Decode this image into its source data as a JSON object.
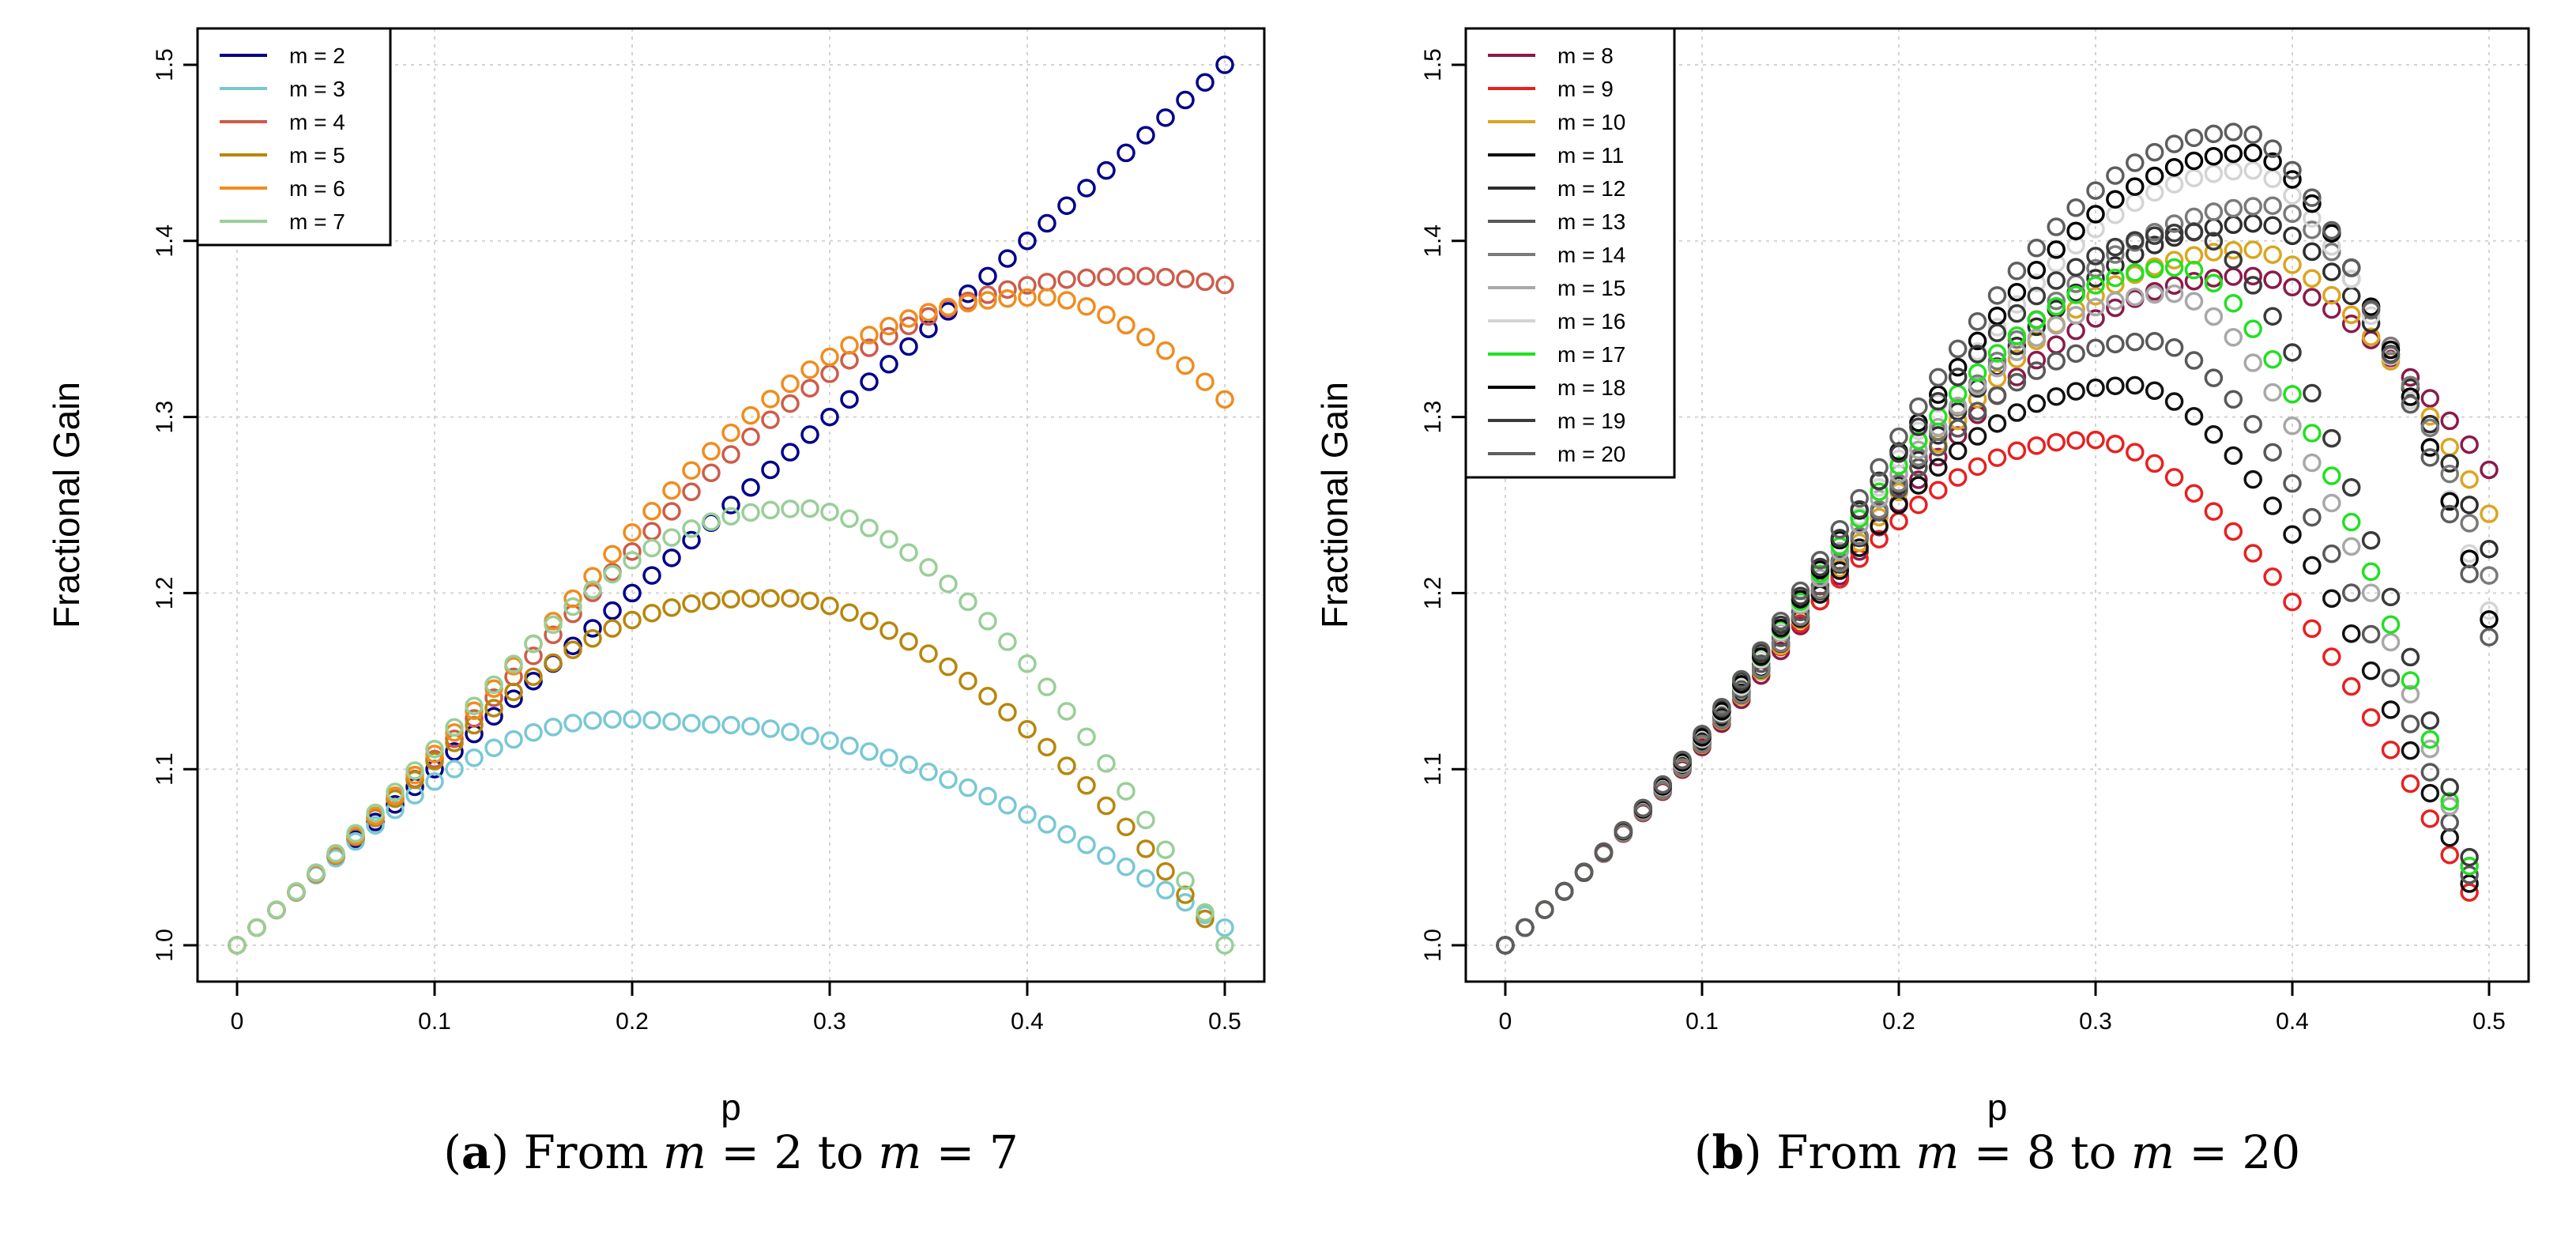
{
  "chart_data": [
    {
      "type": "scatter",
      "panel_label": "(a)",
      "caption": {
        "open": "(",
        "letter": "a",
        "close": ")",
        "text1": " From ",
        "var1": "m",
        "text2": " = 2 to ",
        "var2": "m",
        "text3": " = 7"
      },
      "xlabel": "p",
      "ylabel": "Fractional Gain",
      "xlim": [
        0,
        0.5
      ],
      "ylim": [
        1.0,
        1.5
      ],
      "xticks": [
        "0",
        "0.1",
        "0.2",
        "0.3",
        "0.4",
        "0.5"
      ],
      "yticks": [
        "1.0",
        "1.1",
        "1.2",
        "1.3",
        "1.4",
        "1.5"
      ],
      "grid": true,
      "legend_position": "top-left",
      "series": [
        {
          "name": "m =  2",
          "m": 2,
          "color": "#00008b"
        },
        {
          "name": "m =  3",
          "m": 3,
          "color": "#78c8d4"
        },
        {
          "name": "m =  4",
          "m": 4,
          "color": "#cd5c4a"
        },
        {
          "name": "m =  5",
          "m": 5,
          "color": "#b8860b"
        },
        {
          "name": "m =  6",
          "m": 6,
          "color": "#f08c1e"
        },
        {
          "name": "m =  7",
          "m": 7,
          "color": "#98cf98"
        }
      ]
    },
    {
      "type": "scatter",
      "panel_label": "(b)",
      "caption": {
        "open": "(",
        "letter": "b",
        "close": ")",
        "text1": " From ",
        "var1": "m",
        "text2": " = 8 to ",
        "var2": "m",
        "text3": " = 20"
      },
      "xlabel": "p",
      "ylabel": "Fractional Gain",
      "xlim": [
        0,
        0.5
      ],
      "ylim": [
        1.0,
        1.5
      ],
      "xticks": [
        "0",
        "0.1",
        "0.2",
        "0.3",
        "0.4",
        "0.5"
      ],
      "yticks": [
        "1.0",
        "1.1",
        "1.2",
        "1.3",
        "1.4",
        "1.5"
      ],
      "grid": true,
      "legend_position": "top-left",
      "series": [
        {
          "name": "m =  8",
          "m": 8,
          "color": "#8b1a4a"
        },
        {
          "name": "m =  9",
          "m": 9,
          "color": "#e82020"
        },
        {
          "name": "m =  10",
          "m": 10,
          "color": "#daa520"
        },
        {
          "name": "m =  11",
          "m": 11,
          "color": "#111111"
        },
        {
          "name": "m =  12",
          "m": 12,
          "color": "#2e2e2e"
        },
        {
          "name": "m =  13",
          "m": 13,
          "color": "#585858"
        },
        {
          "name": "m =  14",
          "m": 14,
          "color": "#7a7a7a"
        },
        {
          "name": "m =  15",
          "m": 15,
          "color": "#a8a8a8"
        },
        {
          "name": "m =  16",
          "m": 16,
          "color": "#d4d4d4"
        },
        {
          "name": "m =  17",
          "m": 17,
          "color": "#22e022"
        },
        {
          "name": "m =  18",
          "m": 18,
          "color": "#000000"
        },
        {
          "name": "m =  19",
          "m": 19,
          "color": "#3a3a3a"
        },
        {
          "name": "m =  20",
          "m": 20,
          "color": "#5e5e5e"
        }
      ]
    }
  ]
}
